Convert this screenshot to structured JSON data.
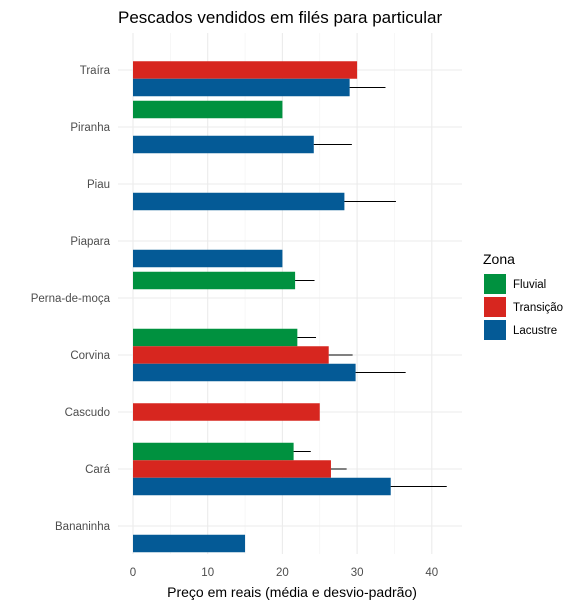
{
  "chart_data": {
    "type": "bar",
    "orientation": "horizontal",
    "title": "Pescados vendidos em filés para particular",
    "xlabel": "Preço em reais (média e desvio-padrão)",
    "ylabel": "",
    "xlim": [
      0,
      44
    ],
    "x_ticks": [
      0,
      10,
      20,
      30,
      40
    ],
    "grid": true,
    "legend": {
      "title": "Zona",
      "position": "right"
    },
    "categories": [
      "Bananinha",
      "Cará",
      "Cascudo",
      "Corvina",
      "Perna-de-moça",
      "Piapara",
      "Piau",
      "Piranha",
      "Traíra"
    ],
    "series": [
      {
        "name": "Fluvial",
        "color": "#00913f",
        "values": [
          null,
          21.5,
          null,
          22,
          21.7,
          null,
          null,
          20,
          null
        ],
        "sd": [
          null,
          2.3,
          null,
          2.5,
          2.6,
          null,
          null,
          null,
          null
        ]
      },
      {
        "name": "Transição",
        "color": "#d7261f",
        "values": [
          null,
          26.5,
          25,
          26.2,
          null,
          null,
          null,
          null,
          30
        ],
        "sd": [
          null,
          2.1,
          null,
          3.2,
          null,
          null,
          null,
          null,
          null
        ]
      },
      {
        "name": "Lacustre",
        "color": "#045a96",
        "values": [
          15,
          34.5,
          null,
          29.8,
          null,
          20,
          28.3,
          24.2,
          29
        ],
        "sd": [
          null,
          7.5,
          null,
          6.7,
          null,
          null,
          6.9,
          5.1,
          4.8
        ]
      }
    ]
  }
}
